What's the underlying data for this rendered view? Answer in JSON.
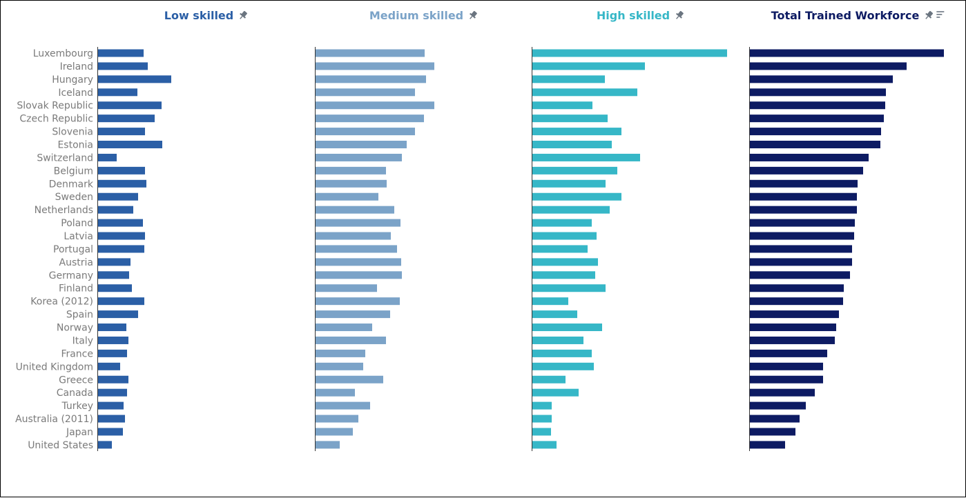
{
  "chart_data": {
    "type": "bar",
    "orientation": "horizontal",
    "categories": [
      "Luxembourg",
      "Ireland",
      "Hungary",
      "Iceland",
      "Slovak Republic",
      "Czech Republic",
      "Slovenia",
      "Estonia",
      "Switzerland",
      "Belgium",
      "Denmark",
      "Sweden",
      "Netherlands",
      "Poland",
      "Latvia",
      "Portugal",
      "Austria",
      "Germany",
      "Finland",
      "Korea (2012)",
      "Spain",
      "Norway",
      "Italy",
      "France",
      "United Kingdom",
      "Greece",
      "Canada",
      "Turkey",
      "Australia (2011)",
      "Japan",
      "United States"
    ],
    "series": [
      {
        "name": "Low skilled",
        "color": "#2b5fa6",
        "icon": "pin-icon",
        "values": [
          66,
          72,
          106,
          57,
          92,
          82,
          68,
          93,
          27,
          68,
          70,
          58,
          51,
          65,
          68,
          67,
          47,
          45,
          49,
          67,
          58,
          41,
          44,
          42,
          32,
          44,
          42,
          37,
          39,
          36,
          20
        ]
      },
      {
        "name": "Medium skilled",
        "color": "#7ba3c8",
        "icon": "pin-icon",
        "values": [
          158,
          172,
          160,
          144,
          172,
          157,
          144,
          132,
          125,
          102,
          103,
          91,
          114,
          123,
          109,
          118,
          124,
          125,
          89,
          122,
          108,
          82,
          102,
          72,
          69,
          98,
          57,
          79,
          62,
          54,
          35
        ]
      },
      {
        "name": "High skilled",
        "color": "#36b7c7",
        "icon": "pin-icon",
        "values": [
          282,
          163,
          105,
          152,
          87,
          109,
          129,
          115,
          156,
          123,
          106,
          129,
          112,
          86,
          93,
          80,
          95,
          91,
          106,
          52,
          65,
          101,
          74,
          86,
          89,
          48,
          67,
          28,
          28,
          27,
          35
        ]
      },
      {
        "name": "Total Trained Workforce",
        "color": "#0d1b63",
        "icon": "pin-icon",
        "sort_icon": "sort-descending-icon",
        "values": [
          281,
          227,
          207,
          197,
          196,
          194,
          190,
          189,
          172,
          164,
          156,
          155,
          155,
          152,
          151,
          148,
          148,
          145,
          136,
          135,
          129,
          125,
          123,
          112,
          106,
          106,
          94,
          81,
          72,
          66,
          51
        ]
      }
    ],
    "xlabel": "",
    "ylabel": "",
    "xlim": [
      0,
      315
    ],
    "grid": false,
    "legend": "none"
  }
}
